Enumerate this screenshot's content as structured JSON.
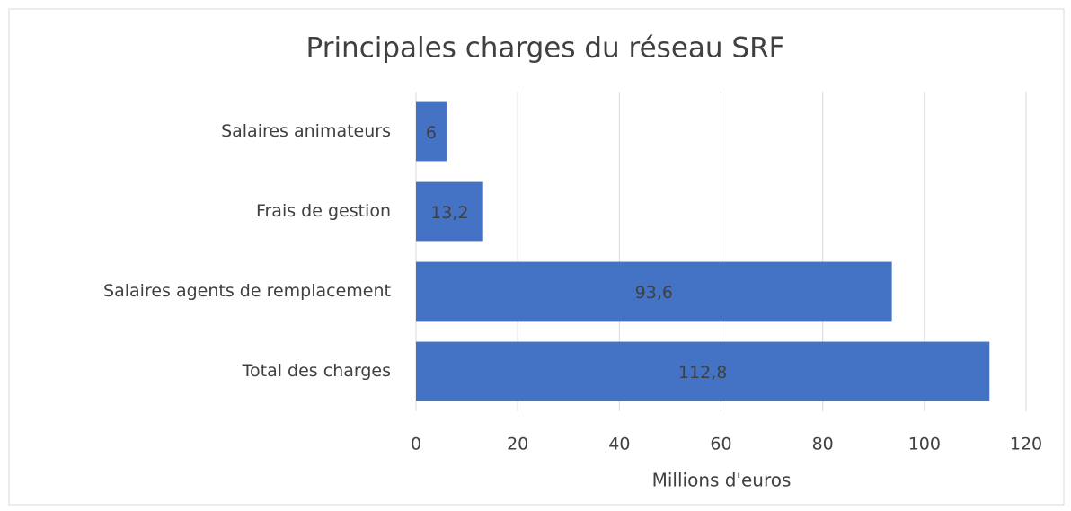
{
  "chart_data": {
    "type": "bar",
    "orientation": "horizontal",
    "title": "Principales charges du réseau SRF",
    "categories": [
      "Salaires animateurs",
      "Frais de gestion",
      "Salaires agents de remplacement",
      "Total des charges"
    ],
    "values": [
      6,
      13.2,
      93.6,
      112.8
    ],
    "value_labels": [
      "6",
      "13,2",
      "93,6",
      "112,8"
    ],
    "color": "#4472c4",
    "xlabel": "Millions d'euros",
    "xlim": [
      0,
      120
    ],
    "xticks": [
      0,
      20,
      40,
      60,
      80,
      100,
      120
    ],
    "grid": true
  }
}
